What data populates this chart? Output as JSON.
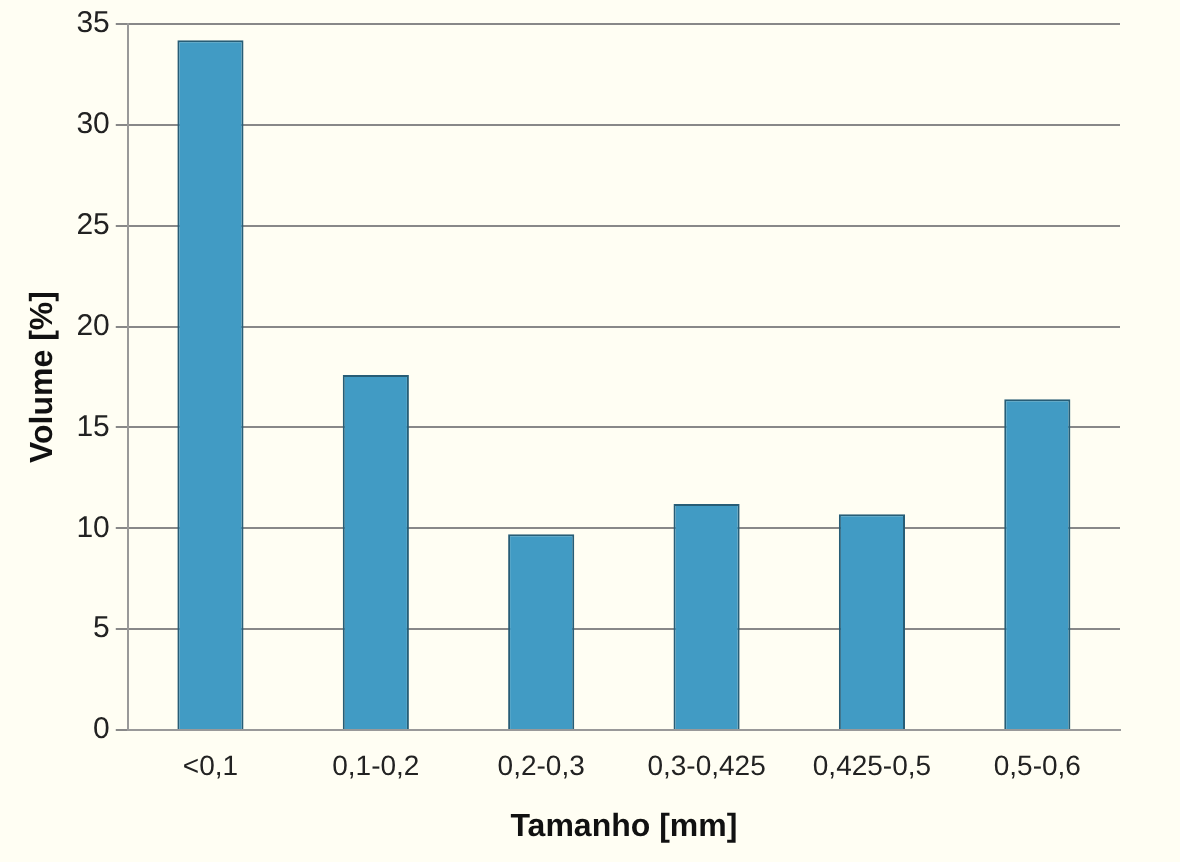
{
  "chart_data": {
    "type": "bar",
    "xlabel": "Tamanho [mm]",
    "ylabel": "Volume [%]",
    "categories": [
      "<0,1",
      "0,1-0,2",
      "0,2-0,3",
      "0,3-0,425",
      "0,425-0,5",
      "0,5-0,6"
    ],
    "values": [
      34.2,
      17.6,
      9.7,
      11.2,
      10.7,
      16.4
    ],
    "color": "#419bc4",
    "ylim": [
      0,
      35
    ],
    "yticks": [
      0,
      5,
      10,
      15,
      20,
      25,
      30,
      35
    ],
    "grid": "y",
    "legend": false
  }
}
